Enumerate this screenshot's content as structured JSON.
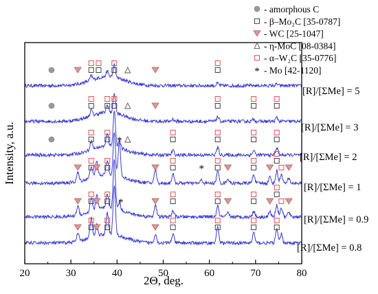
{
  "chart_data": {
    "type": "line",
    "title": "",
    "xlabel": "2Θ, deg.",
    "ylabel": "Intensity, a.u.",
    "xlim": [
      20,
      80
    ],
    "xticks": [
      20,
      30,
      40,
      50,
      60,
      70,
      80
    ],
    "y_tick_labels": false,
    "grid": false,
    "line_color": "#3a3ad0",
    "marker_colors": {
      "gray_circle": "#9a9a9a",
      "triangle_fill": "#d99a9a",
      "triangle_stroke": "#b06060",
      "red_square": "#e05050",
      "black_square": "#404040"
    },
    "legend": {
      "placement": "top-right",
      "entries": [
        {
          "marker": "gray_circle",
          "text": "-  amorphous C"
        },
        {
          "marker": "black_square",
          "text": "- β–Mo₂C [35-0787]"
        },
        {
          "marker": "triangle",
          "text": "- WC [25-1047]"
        },
        {
          "marker": "delta",
          "text": "- η-MoC [08-0384]"
        },
        {
          "marker": "red_square",
          "text": "- α–W₂C [35-0776]"
        },
        {
          "marker": "star",
          "text": "- Mo [42-1120]"
        }
      ]
    },
    "series": [
      {
        "name": "[R]/[ΣMe] = 5",
        "label": "[R]/[ΣMe] = 5",
        "peaks": [
          [
            34.4,
            0.3
          ],
          [
            37.9,
            0.35
          ],
          [
            39.4,
            0.8
          ],
          [
            61.8,
            0.15
          ],
          [
            74.6,
            0.1
          ]
        ],
        "markers": [
          {
            "type": "gray_circle",
            "x": 25.8
          },
          {
            "type": "triangle",
            "x": 31.5
          },
          {
            "type": "red_square",
            "x": 34.4,
            "stack": 1
          },
          {
            "type": "black_square",
            "x": 34.4,
            "stack": 0
          },
          {
            "type": "red_square",
            "x": 36.0,
            "stack": 1
          },
          {
            "type": "black_square",
            "x": 36.0,
            "stack": 0
          },
          {
            "type": "red_square",
            "x": 39.4,
            "stack": 1
          },
          {
            "type": "black_square",
            "x": 39.4,
            "stack": 0
          },
          {
            "type": "delta",
            "x": 42.3
          },
          {
            "type": "triangle",
            "x": 48.3
          },
          {
            "type": "red_square",
            "x": 61.8,
            "stack": 1
          },
          {
            "type": "black_square",
            "x": 61.8,
            "stack": 0
          }
        ]
      },
      {
        "name": "[R]/[ΣMe] = 3",
        "label": "[R]/[ΣMe] = 3",
        "peaks": [
          [
            34.4,
            0.4
          ],
          [
            37.9,
            0.5
          ],
          [
            39.4,
            1.3
          ],
          [
            52.1,
            0.15
          ],
          [
            61.8,
            0.3
          ],
          [
            69.6,
            0.15
          ],
          [
            74.6,
            0.25
          ]
        ],
        "markers": [
          {
            "type": "gray_circle",
            "x": 25.8
          },
          {
            "type": "red_square",
            "x": 34.4,
            "stack": 1
          },
          {
            "type": "black_square",
            "x": 34.4,
            "stack": 0
          },
          {
            "type": "red_square",
            "x": 37.9,
            "stack": 1
          },
          {
            "type": "black_square",
            "x": 37.9,
            "stack": 0
          },
          {
            "type": "red_square",
            "x": 39.4,
            "stack": 1
          },
          {
            "type": "black_square",
            "x": 39.4,
            "stack": 0
          },
          {
            "type": "delta",
            "x": 42.3
          },
          {
            "type": "triangle",
            "x": 48.3
          },
          {
            "type": "red_square",
            "x": 61.8,
            "stack": 1
          },
          {
            "type": "black_square",
            "x": 61.8,
            "stack": 0
          },
          {
            "type": "red_square",
            "x": 69.6,
            "stack": 1
          },
          {
            "type": "black_square",
            "x": 69.6,
            "stack": 0
          },
          {
            "type": "red_square",
            "x": 74.6,
            "stack": 1
          },
          {
            "type": "black_square",
            "x": 74.6,
            "stack": 0
          }
        ]
      },
      {
        "name": "[R]/[ΣMe] = 2",
        "label": "[R]/[ΣMe] = 2",
        "peaks": [
          [
            34.4,
            0.6
          ],
          [
            37.9,
            0.8
          ],
          [
            39.4,
            2.4
          ],
          [
            40.5,
            0.5
          ],
          [
            52.1,
            0.3
          ],
          [
            61.8,
            0.5
          ],
          [
            69.6,
            0.3
          ],
          [
            74.6,
            0.5
          ]
        ],
        "markers": [
          {
            "type": "gray_circle",
            "x": 25.8
          },
          {
            "type": "red_square",
            "x": 34.4,
            "stack": 1
          },
          {
            "type": "black_square",
            "x": 34.4,
            "stack": 0
          },
          {
            "type": "red_square",
            "x": 37.9,
            "stack": 1
          },
          {
            "type": "black_square",
            "x": 37.9,
            "stack": 0
          },
          {
            "type": "star",
            "x": 40.5
          },
          {
            "type": "delta",
            "x": 42.3
          },
          {
            "type": "red_square",
            "x": 52.1,
            "stack": 1
          },
          {
            "type": "black_square",
            "x": 52.1,
            "stack": 0
          },
          {
            "type": "red_square",
            "x": 61.8,
            "stack": 1
          },
          {
            "type": "black_square",
            "x": 61.8,
            "stack": 0
          },
          {
            "type": "red_square",
            "x": 69.6,
            "stack": 1
          },
          {
            "type": "black_square",
            "x": 69.6,
            "stack": 0
          },
          {
            "type": "red_square",
            "x": 74.6,
            "stack": 1
          },
          {
            "type": "black_square",
            "x": 74.6,
            "stack": 0
          }
        ]
      },
      {
        "name": "[R]/[ΣMe] = 1",
        "label": "[R]/[ΣMe] = 1",
        "peaks": [
          [
            31.5,
            0.6
          ],
          [
            34.4,
            0.8
          ],
          [
            35.6,
            1.0
          ],
          [
            37.9,
            0.9
          ],
          [
            39.4,
            2.8
          ],
          [
            40.5,
            2.3
          ],
          [
            48.3,
            0.9
          ],
          [
            52.1,
            0.6
          ],
          [
            58.3,
            0.2
          ],
          [
            61.8,
            0.8
          ],
          [
            64.0,
            0.3
          ],
          [
            69.6,
            0.6
          ],
          [
            73.1,
            0.4
          ],
          [
            74.6,
            0.8
          ],
          [
            75.6,
            0.6
          ],
          [
            77.2,
            0.3
          ]
        ],
        "markers": [
          {
            "type": "triangle",
            "x": 31.5
          },
          {
            "type": "red_square",
            "x": 34.4,
            "stack": 1
          },
          {
            "type": "black_square",
            "x": 34.4,
            "stack": 0
          },
          {
            "type": "triangle",
            "x": 35.6
          },
          {
            "type": "red_square",
            "x": 37.9,
            "stack": 1
          },
          {
            "type": "black_square",
            "x": 37.9,
            "stack": 0
          },
          {
            "type": "triangle",
            "x": 48.3
          },
          {
            "type": "red_square",
            "x": 52.1,
            "stack": 1
          },
          {
            "type": "black_square",
            "x": 52.1,
            "stack": 0
          },
          {
            "type": "star",
            "x": 58.3
          },
          {
            "type": "red_square",
            "x": 61.8,
            "stack": 1
          },
          {
            "type": "black_square",
            "x": 61.8,
            "stack": 0
          },
          {
            "type": "triangle",
            "x": 64.0
          },
          {
            "type": "red_square",
            "x": 69.6,
            "stack": 1
          },
          {
            "type": "black_square",
            "x": 69.6,
            "stack": 0
          },
          {
            "type": "triangle",
            "x": 73.1
          },
          {
            "type": "red_square",
            "x": 74.6,
            "stack": 2
          },
          {
            "type": "black_square",
            "x": 74.6,
            "stack": 1
          },
          {
            "type": "red_square",
            "x": 75.6,
            "stack": 0
          },
          {
            "type": "triangle",
            "x": 77.2
          }
        ]
      },
      {
        "name": "[R]/[ΣMe] = 0.9",
        "label": "[R]/[ΣMe] = 0.9",
        "peaks": [
          [
            31.5,
            0.6
          ],
          [
            34.4,
            0.9
          ],
          [
            35.6,
            1.0
          ],
          [
            37.9,
            0.9
          ],
          [
            39.4,
            3.2
          ],
          [
            40.5,
            0.5
          ],
          [
            48.3,
            0.8
          ],
          [
            52.1,
            0.4
          ],
          [
            61.8,
            0.7
          ],
          [
            64.0,
            0.25
          ],
          [
            69.6,
            0.4
          ],
          [
            73.1,
            0.35
          ],
          [
            74.6,
            0.8
          ],
          [
            75.6,
            0.6
          ],
          [
            77.2,
            0.3
          ]
        ],
        "markers": [
          {
            "type": "triangle",
            "x": 31.5
          },
          {
            "type": "red_square",
            "x": 34.4,
            "stack": 1
          },
          {
            "type": "black_square",
            "x": 34.4,
            "stack": 0
          },
          {
            "type": "triangle",
            "x": 35.6
          },
          {
            "type": "red_square",
            "x": 37.9,
            "stack": 1
          },
          {
            "type": "black_square",
            "x": 37.9,
            "stack": 0
          },
          {
            "type": "star",
            "x": 40.8
          },
          {
            "type": "triangle",
            "x": 48.3
          },
          {
            "type": "red_square",
            "x": 52.1,
            "stack": 1
          },
          {
            "type": "black_square",
            "x": 52.1,
            "stack": 0
          },
          {
            "type": "red_square",
            "x": 61.8,
            "stack": 1
          },
          {
            "type": "black_square",
            "x": 61.8,
            "stack": 0
          },
          {
            "type": "triangle",
            "x": 64.0
          },
          {
            "type": "red_square",
            "x": 69.6,
            "stack": 1
          },
          {
            "type": "black_square",
            "x": 69.6,
            "stack": 0
          },
          {
            "type": "triangle",
            "x": 73.1
          },
          {
            "type": "red_square",
            "x": 74.6,
            "stack": 2
          },
          {
            "type": "black_square",
            "x": 74.6,
            "stack": 1
          },
          {
            "type": "red_square",
            "x": 75.6,
            "stack": 0
          },
          {
            "type": "triangle",
            "x": 77.2
          }
        ]
      },
      {
        "name": "[R]/[ΣMe] = 0.8",
        "label": "[R]/[ΣMe] = 0.8",
        "peaks": [
          [
            31.5,
            0.5
          ],
          [
            34.4,
            1.3
          ],
          [
            35.6,
            0.8
          ],
          [
            37.9,
            1.4
          ],
          [
            39.4,
            3.3
          ],
          [
            48.3,
            0.6
          ],
          [
            52.1,
            0.6
          ],
          [
            61.8,
            1.1
          ],
          [
            69.6,
            0.7
          ],
          [
            74.6,
            0.9
          ],
          [
            75.6,
            0.6
          ]
        ],
        "markers": [
          {
            "type": "triangle",
            "x": 31.5
          },
          {
            "type": "red_square",
            "x": 34.4,
            "stack": 1
          },
          {
            "type": "black_square",
            "x": 34.4,
            "stack": 0
          },
          {
            "type": "triangle",
            "x": 35.6
          },
          {
            "type": "red_square",
            "x": 37.9,
            "stack": 1
          },
          {
            "type": "black_square",
            "x": 37.9,
            "stack": 0
          },
          {
            "type": "triangle",
            "x": 48.3
          },
          {
            "type": "red_square",
            "x": 52.1,
            "stack": 1
          },
          {
            "type": "black_square",
            "x": 52.1,
            "stack": 0
          },
          {
            "type": "red_square",
            "x": 61.8,
            "stack": 1
          },
          {
            "type": "black_square",
            "x": 61.8,
            "stack": 0
          },
          {
            "type": "red_square",
            "x": 69.6,
            "stack": 1
          },
          {
            "type": "black_square",
            "x": 69.6,
            "stack": 0
          },
          {
            "type": "red_square",
            "x": 74.6,
            "stack": 1
          },
          {
            "type": "black_square",
            "x": 74.6,
            "stack": 0
          }
        ]
      }
    ]
  }
}
